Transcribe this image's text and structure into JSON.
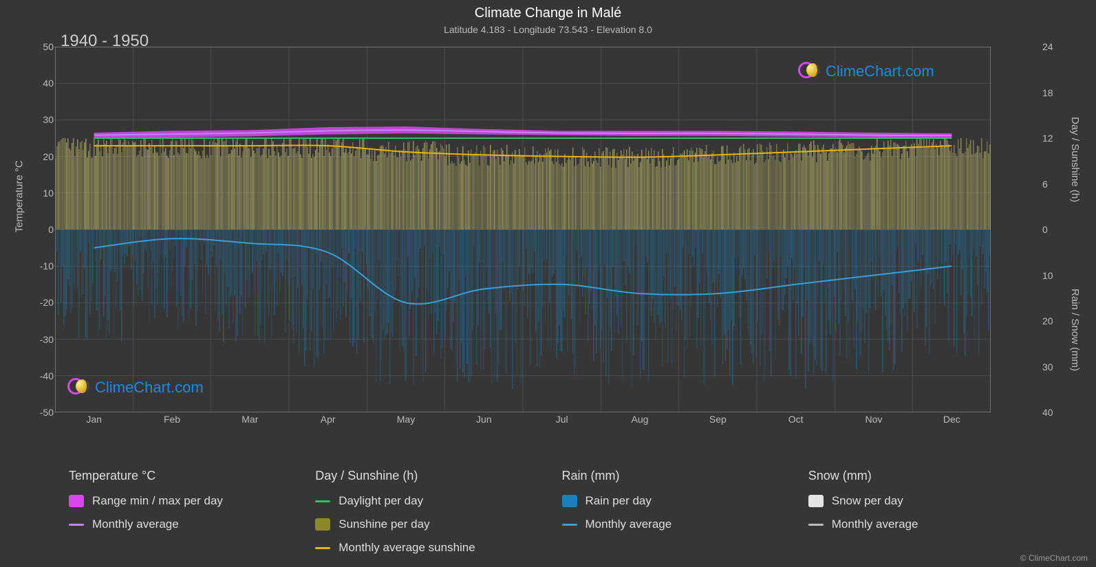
{
  "title": "Climate Change in Malé",
  "subtitle": "Latitude 4.183 - Longitude 73.543 - Elevation 8.0",
  "period_label": "1940 - 1950",
  "watermark_text": "ClimeChart.com",
  "copyright": "© ClimeChart.com",
  "background_color": "#363636",
  "grid_color": "#888888",
  "text_color": "#dddddd",
  "y_left": {
    "label": "Temperature °C",
    "min": -50,
    "max": 50,
    "step": 10,
    "ticks": [
      50,
      40,
      30,
      20,
      10,
      0,
      -10,
      -20,
      -30,
      -40,
      -50
    ]
  },
  "y_right_top": {
    "label": "Day / Sunshine (h)",
    "min": 0,
    "max": 24,
    "step": 6,
    "ticks": [
      24,
      18,
      12,
      6,
      0
    ]
  },
  "y_right_bot": {
    "label": "Rain / Snow (mm)",
    "min": 0,
    "max": 40,
    "step": 10,
    "ticks": [
      10,
      20,
      30,
      40
    ]
  },
  "x": {
    "labels": [
      "Jan",
      "Feb",
      "Mar",
      "Apr",
      "May",
      "Jun",
      "Jul",
      "Aug",
      "Sep",
      "Oct",
      "Nov",
      "Dec"
    ]
  },
  "series": {
    "temp_range": {
      "type": "band",
      "color": "#d946ef",
      "min": [
        25,
        25.2,
        25.5,
        26,
        26.3,
        26,
        25.8,
        25.6,
        25.6,
        25.4,
        25.2,
        25
      ],
      "max": [
        26.5,
        27,
        27.2,
        28,
        28.2,
        27.5,
        27,
        27,
        27,
        26.8,
        26.5,
        26.3
      ]
    },
    "temp_avg": {
      "type": "line",
      "color": "#c084fc",
      "width": 2,
      "values": [
        25.8,
        26.1,
        26.4,
        27,
        27.2,
        26.8,
        26.4,
        26.3,
        26.3,
        26.1,
        25.8,
        25.7
      ]
    },
    "daylight": {
      "type": "line",
      "color": "#22c55e",
      "width": 2,
      "scale": "right_top",
      "values": [
        12,
        12,
        12,
        12,
        12,
        12,
        12,
        12,
        12,
        12,
        12,
        12
      ]
    },
    "sunshine_fill": {
      "type": "area_to_zero",
      "color": "#bdb76b",
      "opacity": 0.75,
      "scale": "right_top",
      "values": [
        11,
        11,
        11,
        11,
        10.2,
        9.8,
        9.6,
        9.5,
        9.8,
        10.2,
        10.6,
        11
      ]
    },
    "sunshine_line": {
      "type": "line",
      "color": "#eab308",
      "width": 2,
      "scale": "right_top",
      "values": [
        11,
        11,
        11,
        11,
        10.2,
        9.8,
        9.6,
        9.5,
        9.8,
        10.2,
        10.6,
        11
      ]
    },
    "rain_fill": {
      "type": "area_down",
      "color": "#1e7fb8",
      "opacity": 0.5,
      "scale": "right_bot",
      "values_max": [
        25,
        22,
        25,
        30,
        35,
        35,
        35,
        35,
        35,
        35,
        32,
        28
      ]
    },
    "rain_avg": {
      "type": "line",
      "color": "#3b9dd8",
      "width": 2,
      "scale": "right_bot",
      "values": [
        4,
        2,
        3,
        5,
        16,
        13,
        12,
        14,
        14,
        12,
        10,
        8
      ]
    }
  },
  "legend": {
    "groups": [
      {
        "header": "Temperature °C",
        "items": [
          {
            "type": "swatch",
            "color": "#d946ef",
            "label": "Range min / max per day"
          },
          {
            "type": "line",
            "color": "#c084fc",
            "label": "Monthly average"
          }
        ]
      },
      {
        "header": "Day / Sunshine (h)",
        "items": [
          {
            "type": "line",
            "color": "#22c55e",
            "label": "Daylight per day"
          },
          {
            "type": "swatch",
            "color": "#8a8a2a",
            "label": "Sunshine per day"
          },
          {
            "type": "line",
            "color": "#eab308",
            "label": "Monthly average sunshine"
          }
        ]
      },
      {
        "header": "Rain (mm)",
        "items": [
          {
            "type": "swatch",
            "color": "#1e7fb8",
            "label": "Rain per day"
          },
          {
            "type": "line",
            "color": "#3b9dd8",
            "label": "Monthly average"
          }
        ]
      },
      {
        "header": "Snow (mm)",
        "items": [
          {
            "type": "swatch",
            "color": "#e5e5e5",
            "label": "Snow per day"
          },
          {
            "type": "line",
            "color": "#bbbbbb",
            "label": "Monthly average"
          }
        ]
      }
    ]
  }
}
